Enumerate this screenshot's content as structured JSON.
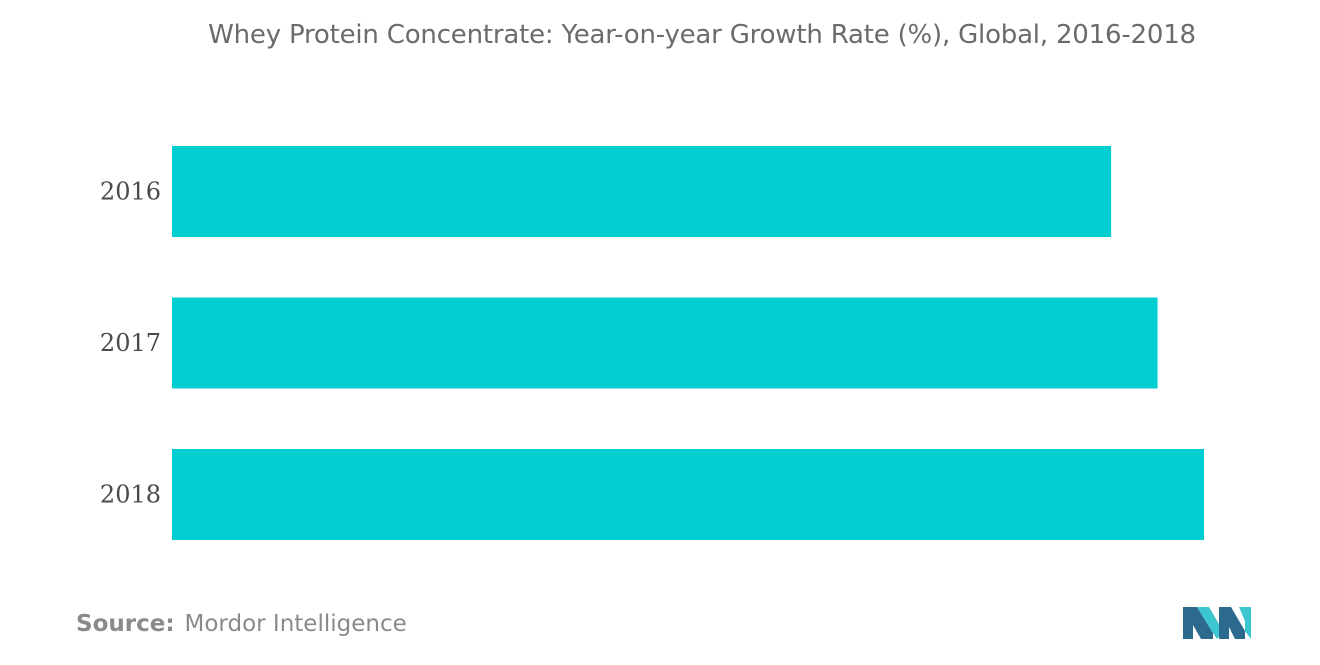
{
  "chart_data": {
    "type": "bar",
    "orientation": "horizontal",
    "title": "Whey Protein Concentrate: Year-on-year Growth Rate (%), Global, 2016-2018",
    "categories": [
      "2016",
      "2017",
      "2018"
    ],
    "values": [
      91,
      95.5,
      100
    ],
    "xlim": [
      0,
      100
    ],
    "xlabel": "",
    "ylabel": "",
    "grid": false,
    "legend": "none",
    "bar_color": "#00CED1"
  },
  "footer": {
    "source_key": "Source:",
    "source_value": "Mordor Intelligence"
  },
  "colors": {
    "bar": "#00CED1",
    "logo_dark": "#2b6a8c",
    "logo_light": "#3cc6cf"
  },
  "icons": {
    "logo": "mordor-intelligence-logo-icon"
  }
}
